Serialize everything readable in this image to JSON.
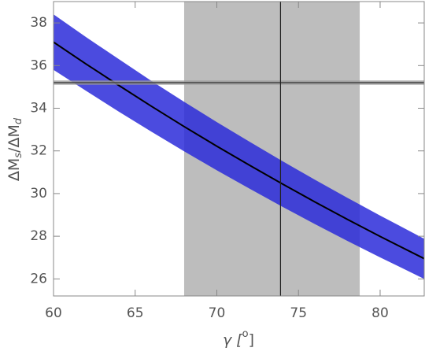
{
  "chart_data": {
    "type": "band-line",
    "x_label": {
      "main": "γ [",
      "sup": "o",
      "end": "]"
    },
    "y_label": {
      "a": "ΔM",
      "a_sub": "s",
      "b": "/ΔM",
      "b_sub": "d"
    },
    "x": [
      60,
      62,
      64,
      66,
      68,
      70,
      72,
      74,
      76,
      78,
      80,
      82.7
    ],
    "series": [
      {
        "role": "center",
        "color": "#000000",
        "values": [
          37.1,
          36.07,
          35.07,
          34.09,
          33.14,
          32.22,
          31.33,
          30.46,
          29.61,
          28.79,
          27.99,
          26.95
        ]
      },
      {
        "role": "upper",
        "color": "#2b2bd9",
        "values": [
          38.4,
          37.33,
          36.3,
          35.28,
          34.3,
          33.35,
          32.43,
          31.53,
          30.65,
          29.8,
          28.97,
          27.88
        ]
      },
      {
        "role": "lower",
        "color": "#2b2bd9",
        "values": [
          35.8,
          34.81,
          33.84,
          32.9,
          31.98,
          31.09,
          30.23,
          29.39,
          28.57,
          27.78,
          27.01,
          26.0
        ]
      }
    ],
    "vband": {
      "from": 68.0,
      "to": 78.75,
      "line": 73.9,
      "color": "#bdbdbd"
    },
    "hband": {
      "from": 35.1,
      "to": 35.3,
      "line": 35.2,
      "color": "#9a9a9a"
    },
    "xlim": [
      60,
      82.7
    ],
    "ylim": [
      25.2,
      39
    ],
    "xticks": [
      60,
      65,
      70,
      75,
      80
    ],
    "yticks": [
      26,
      28,
      30,
      32,
      34,
      36,
      38
    ]
  }
}
